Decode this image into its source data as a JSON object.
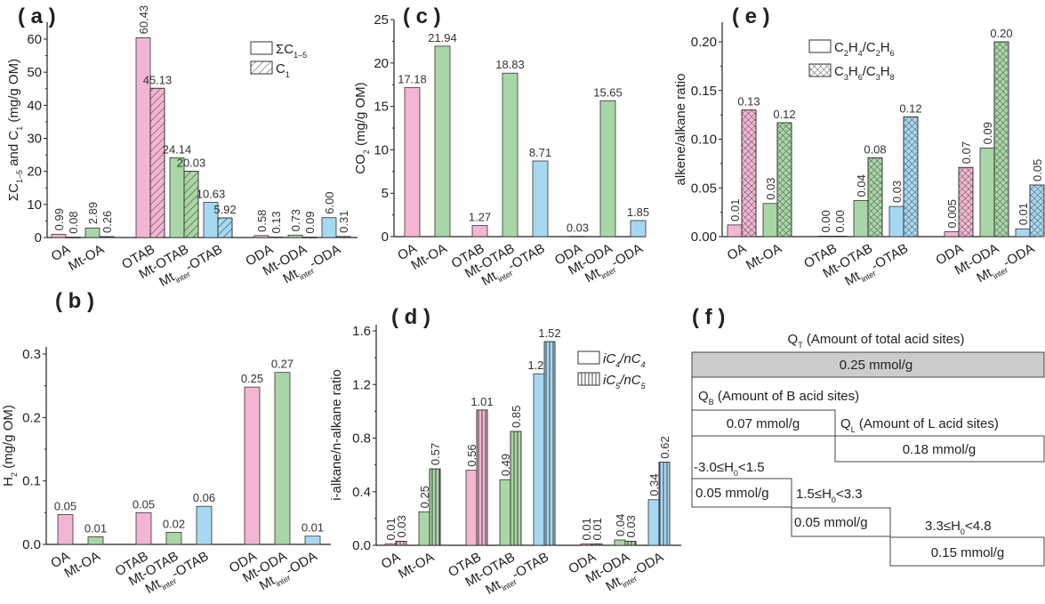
{
  "chart_data": [
    {
      "id": "a",
      "panel_label": "( a )",
      "type": "bar",
      "ylabel": "ΣC_{1–5} and C_1 (mg/g OM)",
      "yticks": [
        "0",
        "10",
        "20",
        "30",
        "40",
        "50",
        "60"
      ],
      "ylim": [
        0,
        65
      ],
      "categories": [
        "OA",
        "Mt-OA",
        "OTAB",
        "Mt-OTAB",
        "Mt_{inter}-OTAB",
        "ODA",
        "Mt-ODA",
        "Mt_{inter}-ODA"
      ],
      "series": [
        {
          "name": "ΣC_{1–5}",
          "pattern": "solid",
          "values": [
            0.99,
            2.89,
            60.43,
            24.14,
            10.63,
            0.58,
            0.73,
            6.0
          ],
          "labels": [
            "0.99",
            "2.89",
            "60.43",
            "24.14",
            "10.63",
            "0.58",
            "0.73",
            "6.00"
          ]
        },
        {
          "name": "C_1",
          "pattern": "diagonal",
          "values": [
            0.08,
            0.26,
            45.13,
            20.03,
            5.92,
            0.13,
            0.09,
            0.31
          ],
          "labels": [
            "0.08",
            "0.26",
            "45.13",
            "20.03",
            "5.92",
            "0.13",
            "0.09",
            "0.31"
          ]
        }
      ],
      "legend": "top-right"
    },
    {
      "id": "c",
      "panel_label": "( c )",
      "type": "bar",
      "ylabel": "CO_2 (mg/g OM)",
      "yticks": [
        "0",
        "5",
        "10",
        "15",
        "20",
        "25"
      ],
      "ylim": [
        0,
        25
      ],
      "categories": [
        "OA",
        "Mt-OA",
        "OTAB",
        "Mt-OTAB",
        "Mt_{inter}-OTAB",
        "ODA",
        "Mt-ODA",
        "Mt_{inter}-ODA"
      ],
      "series": [
        {
          "pattern": "solid",
          "values": [
            17.18,
            21.94,
            1.27,
            18.83,
            8.71,
            0.03,
            15.65,
            1.85
          ],
          "labels": [
            "17.18",
            "21.94",
            "1.27",
            "18.83",
            "8.71",
            "0.03",
            "15.65",
            "1.85"
          ]
        }
      ]
    },
    {
      "id": "e",
      "panel_label": "( e )",
      "type": "bar",
      "ylabel": "alkene/alkane ratio",
      "yticks": [
        "0.00",
        "0.05",
        "0.10",
        "0.15",
        "0.20"
      ],
      "ylim": [
        0,
        0.22
      ],
      "categories": [
        "OA",
        "Mt-OA",
        "OTAB",
        "Mt-OTAB",
        "Mt_{inter}-OTAB",
        "ODA",
        "Mt-ODA",
        "Mt_{inter}-ODA"
      ],
      "series": [
        {
          "name": "C_2H_4/C_2H_6",
          "pattern": "solid",
          "values": [
            0.012,
            0.034,
            0.0005,
            0.037,
            0.031,
            0.005,
            0.091,
            0.008
          ],
          "labels": [
            "0.01",
            "0.03",
            "0.00",
            "0.04",
            "0.03",
            "0.005",
            "0.09",
            "0.01"
          ]
        },
        {
          "name": "C_3H_6/C_3H_8",
          "pattern": "crosshatch",
          "values": [
            0.13,
            0.117,
            0.0005,
            0.081,
            0.123,
            0.071,
            0.2,
            0.053
          ],
          "labels": [
            "0.13",
            "0.12",
            "0.00",
            "0.08",
            "0.12",
            "0.07",
            "0.20",
            "0.05"
          ]
        }
      ],
      "legend": "top-center"
    },
    {
      "id": "b",
      "panel_label": "( b )",
      "type": "bar",
      "ylabel": "H_2 (mg/g OM)",
      "yticks": [
        "0.0",
        "0.1",
        "0.2",
        "0.3"
      ],
      "ylim": [
        0,
        0.31
      ],
      "categories": [
        "OA",
        "Mt-OA",
        "OTAB",
        "Mt-OTAB",
        "Mt_{inter}-OTAB",
        "ODA",
        "Mt-ODA",
        "Mt_{inter}-ODA"
      ],
      "series": [
        {
          "pattern": "solid",
          "values": [
            0.047,
            0.012,
            0.05,
            0.019,
            0.06,
            0.248,
            0.271,
            0.013
          ],
          "labels": [
            "0.05",
            "0.01",
            "0.05",
            "0.02",
            "0.06",
            "0.25",
            "0.27",
            "0.01"
          ]
        }
      ]
    },
    {
      "id": "d",
      "panel_label": "( d )",
      "type": "bar",
      "ylabel": "i-alkane/n-alkane ratio",
      "yticks": [
        "0.0",
        "0.4",
        "0.8",
        "1.2",
        "1.6"
      ],
      "ylim": [
        0,
        1.64
      ],
      "categories": [
        "OA",
        "Mt-OA",
        "OTAB",
        "Mt-OTAB",
        "Mt_{inter}-OTAB",
        "ODA",
        "Mt-ODA",
        "Mt_{inter}-ODA"
      ],
      "series": [
        {
          "name": "iC_4/nC_4",
          "pattern": "solid",
          "values": [
            0.01,
            0.25,
            0.56,
            0.49,
            1.28,
            0.01,
            0.04,
            0.34
          ],
          "labels": [
            "0.01",
            "0.25",
            "0.56",
            "0.49",
            "1.28",
            "0.01",
            "0.04",
            "0.34"
          ]
        },
        {
          "name": "iC_5/nC_5",
          "pattern": "vertical",
          "values": [
            0.03,
            0.57,
            1.01,
            0.85,
            1.52,
            0.01,
            0.03,
            0.62
          ],
          "labels": [
            "0.03",
            "0.57",
            "1.01",
            "0.85",
            "1.52",
            "0.01",
            "0.03",
            "0.62"
          ]
        }
      ],
      "legend": "top-right"
    }
  ],
  "colors": {
    "OA_family": "#f2b6d2",
    "Mt_family": "#a9d6a6",
    "Mt_inter_family": "#a6d8f2",
    "total_box": "#cccccc"
  },
  "acid_panel": {
    "panel_label": "( f )",
    "qt_label": "Q_T (Amount of total acid sites)",
    "qt_value": "0.25 mmol/g",
    "qb_label": "Q_B (Amount of B acid sites)",
    "qb_value": "0.07 mmol/g",
    "ql_label": "Q_L (Amount of L acid sites)",
    "ql_value": "0.18 mmol/g",
    "range1_label": "-3.0≤H_0<1.5",
    "range1_value": "0.05 mmol/g",
    "range2_label": "1.5≤H_0<3.3",
    "range2_value": "0.05 mmol/g",
    "range3_label": "3.3≤H_0<4.8",
    "range3_value": "0.15 mmol/g"
  }
}
